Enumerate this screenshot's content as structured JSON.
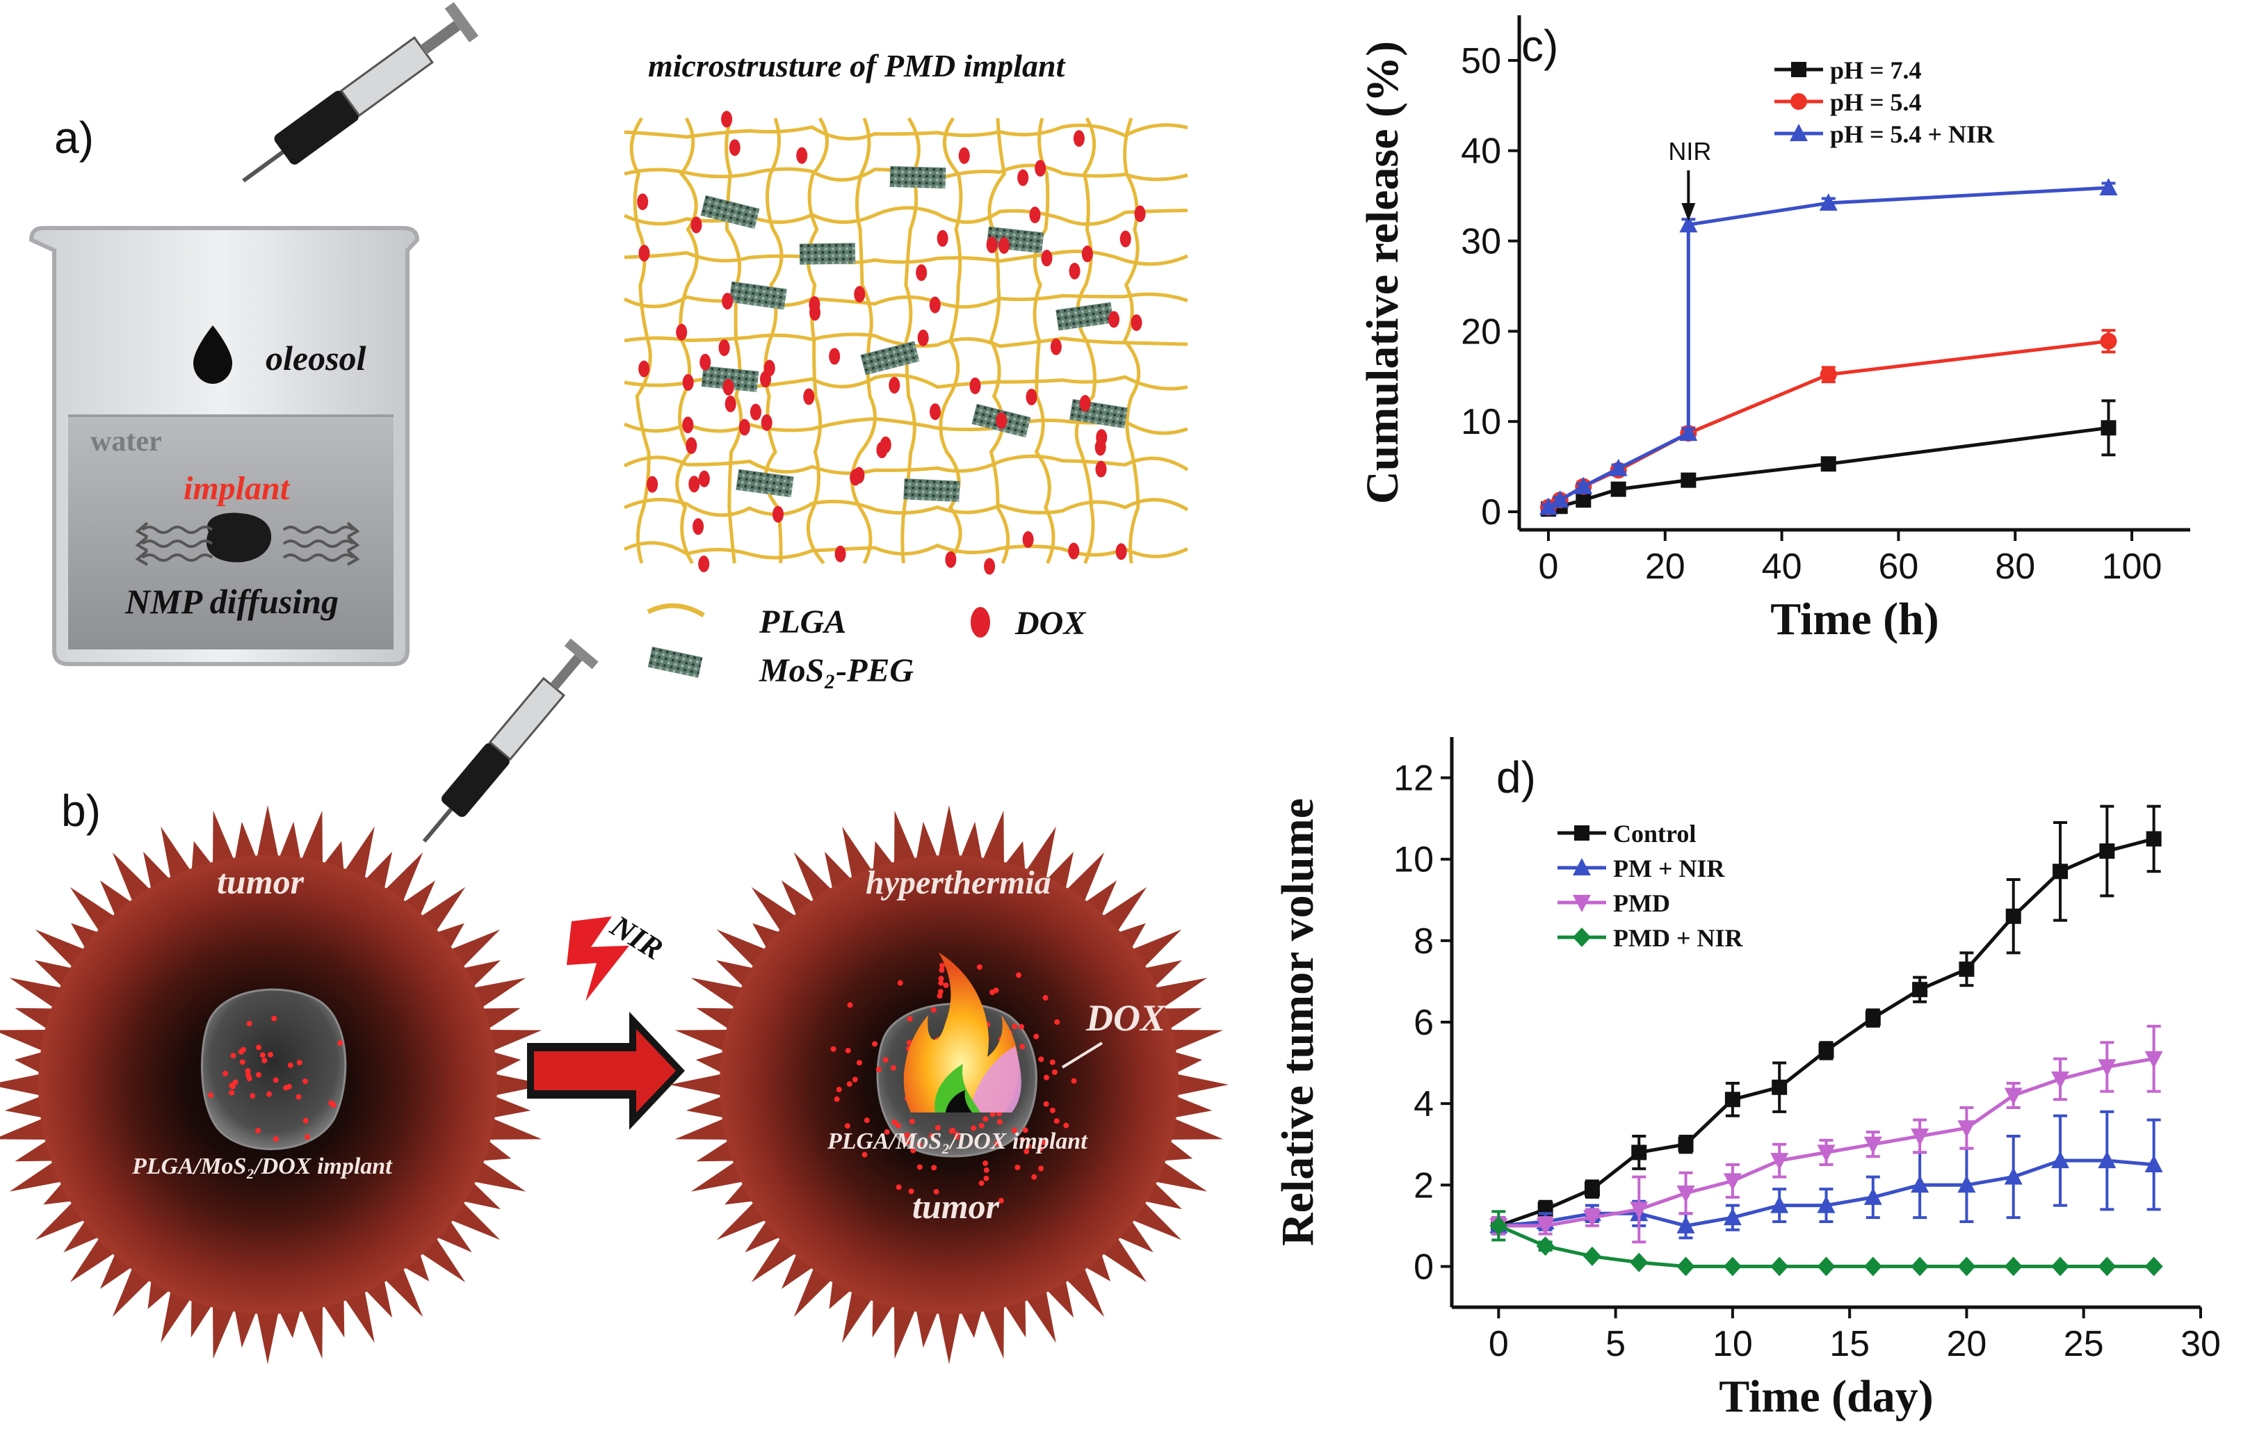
{
  "panel_labels": {
    "a": "a)",
    "b": "b)",
    "c": "c)",
    "d": "d)"
  },
  "panel_a": {
    "title": "microstrusture of PMD implant",
    "oleosol": "oleosol",
    "water": "water",
    "implant": "implant",
    "diffusing": "NMP diffusing",
    "legend_plga": "PLGA",
    "legend_mos2": "MoS₂-PEG",
    "legend_dox": "DOX"
  },
  "panel_b": {
    "tumor_top": "tumor",
    "implant_left": "PLGA/MoS₂/DOX implant",
    "nir": "NIR",
    "hyperthermia": "hyperthermia",
    "dox": "DOX",
    "implant_right": "PLGA/MoS₂/DOX implant",
    "tumor_bottom": "tumor"
  },
  "colors": {
    "black": "#111111",
    "red": "#ee3226",
    "blue": "#3a50c8",
    "magenta": "#c466cf",
    "green": "#138a3a",
    "tumor": "#8a2a20",
    "fiber": "#e7b93a"
  },
  "chart_data": [
    {
      "type": "line",
      "panel": "c",
      "xlabel": "Time (h)",
      "ylabel": "Cumulative release (%)",
      "xlim": [
        -5,
        110
      ],
      "ylim": [
        -2,
        55
      ],
      "xticks": [
        0,
        20,
        40,
        60,
        80,
        100
      ],
      "yticks": [
        0,
        10,
        20,
        30,
        40,
        50
      ],
      "legend_position": "top-right",
      "annotation": "NIR",
      "series": [
        {
          "name": "pH = 7.4",
          "color": "#111111",
          "marker": "square",
          "x": [
            0,
            2,
            6,
            12,
            24,
            48,
            96
          ],
          "y": [
            0.3,
            0.6,
            1.3,
            2.5,
            3.5,
            5.3,
            9.3
          ],
          "err": [
            0.3,
            0.3,
            0.4,
            0.4,
            0.6,
            0.6,
            3.0
          ]
        },
        {
          "name": "pH = 5.4",
          "color": "#ee3226",
          "marker": "circle",
          "x": [
            0,
            2,
            6,
            12,
            24,
            48,
            96
          ],
          "y": [
            0.5,
            1.3,
            2.8,
            4.6,
            8.7,
            15.2,
            18.9
          ],
          "err": [
            0.3,
            0.4,
            0.5,
            0.5,
            0.6,
            0.8,
            1.2
          ]
        },
        {
          "name": "pH = 5.4 + NIR",
          "color": "#3a50c8",
          "marker": "triangle",
          "x": [
            0,
            2,
            6,
            12,
            24,
            24,
            48,
            96
          ],
          "y": [
            0.5,
            1.3,
            2.8,
            4.8,
            8.7,
            31.8,
            34.2,
            35.9
          ],
          "err": [
            0.3,
            0.3,
            0.3,
            0.4,
            0.5,
            0.6,
            0.5,
            0.5
          ]
        }
      ]
    },
    {
      "type": "line",
      "panel": "d",
      "xlabel": "Time (day)",
      "ylabel": "Relative tumor volume",
      "xlim": [
        -2,
        30
      ],
      "ylim": [
        -1,
        13
      ],
      "xticks": [
        0,
        5,
        10,
        15,
        20,
        25,
        30
      ],
      "yticks": [
        0,
        2,
        4,
        6,
        8,
        10,
        12
      ],
      "legend_position": "top-left",
      "series": [
        {
          "name": "Control",
          "color": "#111111",
          "marker": "square",
          "x": [
            0,
            2,
            4,
            6,
            8,
            10,
            12,
            14,
            16,
            18,
            20,
            22,
            24,
            26,
            28
          ],
          "y": [
            1.0,
            1.4,
            1.9,
            2.8,
            3.0,
            4.1,
            4.4,
            5.3,
            6.1,
            6.8,
            7.3,
            8.6,
            9.7,
            10.2,
            10.5
          ],
          "err": [
            0.2,
            0.2,
            0.2,
            0.4,
            0.2,
            0.4,
            0.6,
            0.2,
            0.2,
            0.3,
            0.4,
            0.9,
            1.2,
            1.1,
            0.8
          ]
        },
        {
          "name": "PM + NIR",
          "color": "#3a50c8",
          "marker": "triangle",
          "x": [
            0,
            2,
            4,
            6,
            8,
            10,
            12,
            14,
            16,
            18,
            20,
            22,
            24,
            26,
            28
          ],
          "y": [
            1.0,
            1.1,
            1.3,
            1.3,
            1.0,
            1.2,
            1.5,
            1.5,
            1.7,
            2.0,
            2.0,
            2.2,
            2.6,
            2.6,
            2.5
          ],
          "err": [
            0.2,
            0.2,
            0.2,
            0.3,
            0.3,
            0.3,
            0.4,
            0.4,
            0.5,
            0.8,
            0.9,
            1.0,
            1.1,
            1.2,
            1.1
          ]
        },
        {
          "name": "PMD",
          "color": "#c466cf",
          "marker": "triangle-down",
          "x": [
            0,
            2,
            4,
            6,
            8,
            10,
            12,
            14,
            16,
            18,
            20,
            22,
            24,
            26,
            28
          ],
          "y": [
            1.0,
            1.0,
            1.2,
            1.4,
            1.8,
            2.1,
            2.6,
            2.8,
            3.0,
            3.2,
            3.4,
            4.2,
            4.6,
            4.9,
            5.1
          ],
          "err": [
            0.2,
            0.2,
            0.2,
            0.8,
            0.5,
            0.4,
            0.4,
            0.3,
            0.3,
            0.4,
            0.5,
            0.3,
            0.5,
            0.6,
            0.8
          ]
        },
        {
          "name": "PMD + NIR",
          "color": "#138a3a",
          "marker": "diamond",
          "x": [
            0,
            2,
            4,
            6,
            8,
            10,
            12,
            14,
            16,
            18,
            20,
            22,
            24,
            26,
            28
          ],
          "y": [
            1.0,
            0.5,
            0.25,
            0.1,
            0.0,
            0.0,
            0.0,
            0.0,
            0.0,
            0.0,
            0.0,
            0.0,
            0.0,
            0.0,
            0.0
          ],
          "err": [
            0.35,
            0.1,
            0.05,
            0.05,
            0.02,
            0.02,
            0.02,
            0.02,
            0.02,
            0.02,
            0.02,
            0.02,
            0.02,
            0.02,
            0.02
          ]
        }
      ]
    }
  ]
}
